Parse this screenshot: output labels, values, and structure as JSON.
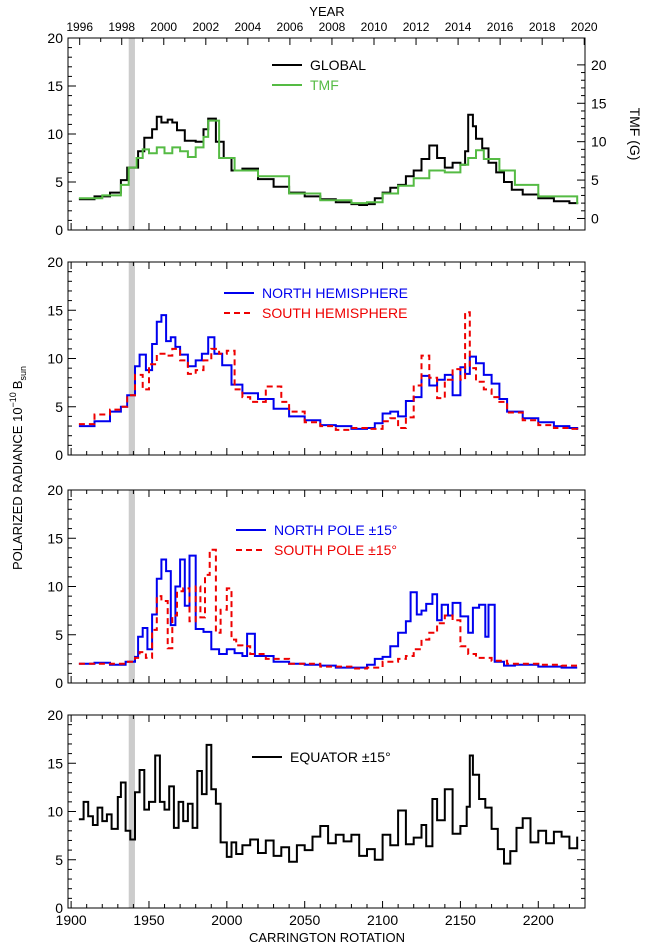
{
  "top_axis": {
    "label": "YEAR",
    "ticks": [
      "1996",
      "1998",
      "2000",
      "2002",
      "2004",
      "2006",
      "2008",
      "2010",
      "2012",
      "2014",
      "2016",
      "2018",
      "2020"
    ],
    "tick_cr": [
      1905.5,
      1932.5,
      1959.5,
      1986.5,
      2013.5,
      2040.5,
      2067.5,
      2094.5,
      2121.5,
      2148.5,
      2175.5,
      2202.5,
      2229.5
    ]
  },
  "shared_y_label_main": "POLARIZED RADIANCE 10",
  "shared_y_label_exp": "−10",
  "shared_y_label_unit": "B",
  "shared_y_label_sub": "sun",
  "x_axis": {
    "label": "CARRINGTON ROTATION",
    "ticks": [
      "1900",
      "1950",
      "2000",
      "2050",
      "2100",
      "2150",
      "2200"
    ],
    "tick_values": [
      1900,
      1950,
      2000,
      2050,
      2100,
      2150,
      2200
    ],
    "range": [
      1898,
      2230
    ]
  },
  "gap_band": [
    1937,
    1941
  ],
  "colors": {
    "black": "#000000",
    "green": "#55bb44",
    "blue": "#0000ee",
    "red": "#ee0000",
    "gray": "#cccccc"
  },
  "chart_data": [
    {
      "type": "line",
      "panel": "global",
      "ylim": [
        0,
        20
      ],
      "yticks": [
        "0",
        "5",
        "10",
        "15",
        "20"
      ],
      "ytick_values": [
        0,
        5,
        10,
        15,
        20
      ],
      "right_axis": {
        "label": "TMF (G)",
        "ticks": [
          "0",
          "5",
          "10",
          "15",
          "20"
        ],
        "tick_values": [
          0,
          5,
          10,
          15,
          20
        ],
        "mapping": "tmf_to_radiance"
      },
      "legend": [
        {
          "label": "GLOBAL",
          "color": "black",
          "dash": false
        },
        {
          "label": "TMF",
          "color": "green",
          "dash": false
        }
      ],
      "series": [
        {
          "name": "GLOBAL",
          "color": "black",
          "dash": false,
          "x": [
            1905,
            1915,
            1925,
            1932,
            1936,
            1943,
            1947,
            1952,
            1955,
            1958,
            1962,
            1965,
            1968,
            1973,
            1980,
            1985,
            1988,
            1993,
            1998,
            2003,
            2010,
            2020,
            2030,
            2040,
            2050,
            2060,
            2070,
            2080,
            2085,
            2090,
            2095,
            2100,
            2105,
            2110,
            2115,
            2120,
            2125,
            2130,
            2135,
            2140,
            2145,
            2150,
            2153,
            2155,
            2158,
            2160,
            2164,
            2168,
            2173,
            2178,
            2183,
            2190,
            2200,
            2210,
            2220,
            2225
          ],
          "values": [
            3.2,
            3.5,
            3.9,
            5.2,
            6.5,
            8.2,
            9.6,
            10.5,
            11.8,
            11.2,
            11.5,
            11.2,
            10.4,
            9.3,
            9.2,
            10.5,
            11.6,
            9.2,
            7.5,
            6.2,
            6.4,
            5.3,
            4.5,
            3.9,
            3.5,
            3.2,
            2.9,
            2.7,
            2.6,
            2.7,
            3.3,
            3.9,
            4.4,
            4.7,
            5.6,
            6.2,
            7.4,
            8.8,
            7.5,
            6.5,
            7.0,
            6.8,
            8.2,
            12.0,
            10.8,
            9.5,
            8.5,
            7.0,
            6.0,
            5.0,
            4.2,
            3.7,
            3.3,
            3.0,
            2.8,
            2.7
          ]
        },
        {
          "name": "TMF",
          "color": "green",
          "dash": false,
          "x": [
            1905,
            1920,
            1932,
            1937,
            1942,
            1946,
            1950,
            1955,
            1960,
            1965,
            1970,
            1975,
            1980,
            1985,
            1988,
            1995,
            2005,
            2020,
            2040,
            2060,
            2080,
            2090,
            2100,
            2110,
            2120,
            2130,
            2140,
            2150,
            2155,
            2160,
            2165,
            2175,
            2185,
            2200,
            2225
          ],
          "values": [
            3.3,
            3.6,
            4.7,
            6.5,
            7.5,
            8.4,
            8.0,
            8.6,
            8.0,
            8.6,
            8.2,
            7.6,
            8.6,
            9.7,
            11.4,
            7.5,
            6.2,
            5.6,
            3.8,
            3.1,
            2.8,
            2.9,
            3.8,
            4.6,
            5.4,
            6.2,
            6.0,
            6.8,
            7.5,
            8.3,
            7.4,
            6.2,
            4.7,
            3.5,
            2.7
          ]
        }
      ]
    },
    {
      "type": "line",
      "panel": "hemispheres",
      "ylim": [
        0,
        20
      ],
      "yticks": [
        "0",
        "5",
        "10",
        "15",
        "20"
      ],
      "ytick_values": [
        0,
        5,
        10,
        15,
        20
      ],
      "legend": [
        {
          "label": "NORTH HEMISPHERE",
          "color": "blue",
          "dash": false
        },
        {
          "label": "SOUTH HEMISPHERE",
          "color": "red",
          "dash": true
        }
      ],
      "series": [
        {
          "name": "NORTH HEMISPHERE",
          "color": "blue",
          "dash": false,
          "x": [
            1905,
            1915,
            1925,
            1932,
            1936,
            1941,
            1944,
            1948,
            1952,
            1955,
            1958,
            1961,
            1964,
            1967,
            1970,
            1975,
            1980,
            1984,
            1988,
            1992,
            1997,
            2003,
            2010,
            2020,
            2030,
            2040,
            2050,
            2060,
            2070,
            2080,
            2090,
            2095,
            2100,
            2105,
            2110,
            2115,
            2120,
            2125,
            2130,
            2135,
            2140,
            2145,
            2150,
            2153,
            2156,
            2160,
            2165,
            2170,
            2175,
            2180,
            2190,
            2200,
            2210,
            2220,
            2225
          ],
          "values": [
            3.0,
            3.5,
            4.5,
            5.0,
            6.2,
            9.2,
            10.4,
            8.8,
            11.5,
            13.8,
            14.5,
            11.8,
            12.2,
            11.2,
            10.4,
            9.2,
            9.8,
            10.5,
            12.2,
            10.5,
            9.3,
            7.3,
            6.4,
            5.8,
            4.8,
            4.0,
            3.6,
            3.1,
            3.0,
            2.7,
            2.8,
            3.3,
            4.3,
            4.5,
            4.0,
            5.6,
            6.0,
            8.2,
            7.2,
            7.8,
            8.3,
            6.2,
            9.1,
            8.4,
            10.2,
            9.5,
            8.3,
            7.4,
            5.8,
            4.5,
            3.8,
            3.4,
            3.0,
            2.8,
            2.6
          ]
        },
        {
          "name": "SOUTH HEMISPHERE",
          "color": "red",
          "dash": true,
          "x": [
            1905,
            1915,
            1925,
            1932,
            1936,
            1941,
            1946,
            1950,
            1955,
            1960,
            1965,
            1970,
            1975,
            1980,
            1985,
            1990,
            1995,
            2000,
            2005,
            2010,
            2015,
            2025,
            2035,
            2040,
            2050,
            2060,
            2070,
            2080,
            2090,
            2100,
            2105,
            2110,
            2115,
            2120,
            2125,
            2130,
            2135,
            2140,
            2145,
            2150,
            2153,
            2156,
            2160,
            2165,
            2170,
            2175,
            2180,
            2190,
            2200,
            2210,
            2220,
            2225
          ],
          "values": [
            3.2,
            4.2,
            4.7,
            5.0,
            6.2,
            8.3,
            6.8,
            9.4,
            10.5,
            10.3,
            11.0,
            9.8,
            8.4,
            8.8,
            9.8,
            11.0,
            10.5,
            10.8,
            6.8,
            6.0,
            5.5,
            7.1,
            5.5,
            4.5,
            3.4,
            3.0,
            2.6,
            2.8,
            2.7,
            3.5,
            3.8,
            2.8,
            3.9,
            7.2,
            10.3,
            8.0,
            5.9,
            7.8,
            8.9,
            7.8,
            14.8,
            9.0,
            7.6,
            6.8,
            6.0,
            5.5,
            4.4,
            3.6,
            3.1,
            2.8,
            2.7,
            2.6
          ]
        }
      ]
    },
    {
      "type": "line",
      "panel": "poles",
      "ylim": [
        0,
        20
      ],
      "yticks": [
        "0",
        "5",
        "10",
        "15",
        "20"
      ],
      "ytick_values": [
        0,
        5,
        10,
        15,
        20
      ],
      "legend": [
        {
          "label": "NORTH POLE ±15°",
          "color": "blue",
          "dash": false
        },
        {
          "label": "SOUTH POLE ±15°",
          "color": "red",
          "dash": true
        }
      ],
      "series": [
        {
          "name": "NORTH POLE ±15°",
          "color": "blue",
          "dash": false,
          "x": [
            1905,
            1915,
            1925,
            1935,
            1941,
            1943,
            1946,
            1949,
            1952,
            1955,
            1958,
            1961,
            1964,
            1967,
            1970,
            1973,
            1976,
            1980,
            1985,
            1990,
            1995,
            2000,
            2005,
            2010,
            2013,
            2018,
            2030,
            2040,
            2050,
            2060,
            2070,
            2080,
            2090,
            2095,
            2100,
            2105,
            2110,
            2115,
            2118,
            2122,
            2125,
            2128,
            2132,
            2135,
            2138,
            2142,
            2145,
            2150,
            2155,
            2158,
            2162,
            2166,
            2168,
            2172,
            2178,
            2185,
            2200,
            2215,
            2225
          ],
          "values": [
            2.0,
            2.1,
            1.9,
            2.2,
            2.7,
            4.8,
            5.7,
            3.5,
            7.1,
            10.8,
            12.8,
            11.6,
            6.0,
            10.0,
            12.8,
            8.0,
            13.2,
            5.6,
            5.3,
            3.5,
            3.0,
            3.5,
            3.1,
            2.8,
            5.1,
            2.8,
            2.2,
            2.0,
            1.9,
            1.8,
            1.6,
            1.6,
            1.9,
            2.5,
            2.7,
            3.8,
            5.2,
            6.4,
            9.4,
            7.1,
            7.5,
            8.2,
            9.2,
            6.5,
            8.1,
            7.0,
            8.3,
            6.9,
            5.2,
            7.8,
            8.1,
            4.8,
            8.1,
            2.2,
            1.8,
            1.9,
            1.7,
            1.6,
            1.6
          ]
        },
        {
          "name": "SOUTH POLE ±15°",
          "color": "red",
          "dash": true,
          "x": [
            1905,
            1915,
            1925,
            1935,
            1941,
            1944,
            1948,
            1952,
            1955,
            1958,
            1962,
            1965,
            1968,
            1972,
            1976,
            1980,
            1983,
            1986,
            1989,
            1993,
            1996,
            2000,
            2003,
            2006,
            2010,
            2015,
            2025,
            2040,
            2060,
            2080,
            2090,
            2100,
            2110,
            2115,
            2120,
            2125,
            2130,
            2135,
            2140,
            2145,
            2150,
            2155,
            2160,
            2170,
            2180,
            2200,
            2215,
            2225
          ],
          "values": [
            2.0,
            2.0,
            2.0,
            2.2,
            2.6,
            3.2,
            2.6,
            5.5,
            9.0,
            8.5,
            3.6,
            7.0,
            9.5,
            9.8,
            6.4,
            10.0,
            6.8,
            11.2,
            13.8,
            5.2,
            7.6,
            9.8,
            4.5,
            3.9,
            3.8,
            3.0,
            2.5,
            2.0,
            1.7,
            1.5,
            1.6,
            2.2,
            2.5,
            2.8,
            3.5,
            4.5,
            5.2,
            6.2,
            7.0,
            6.5,
            3.8,
            3.0,
            2.6,
            2.3,
            2.0,
            1.9,
            1.8,
            1.7
          ]
        }
      ]
    },
    {
      "type": "line",
      "panel": "equator",
      "ylim": [
        0,
        20
      ],
      "yticks": [
        "0",
        "5",
        "10",
        "15",
        "20"
      ],
      "ytick_values": [
        0,
        5,
        10,
        15,
        20
      ],
      "legend": [
        {
          "label": "EQUATOR ±15°",
          "color": "black",
          "dash": false
        }
      ],
      "series": [
        {
          "name": "EQUATOR ±15°",
          "color": "black",
          "dash": false,
          "x": [
            1905,
            1908,
            1911,
            1914,
            1917,
            1920,
            1923,
            1926,
            1930,
            1932,
            1935,
            1938,
            1941,
            1944,
            1947,
            1950,
            1954,
            1957,
            1960,
            1963,
            1966,
            1969,
            1972,
            1975,
            1978,
            1981,
            1984,
            1987,
            1990,
            1993,
            1996,
            2000,
            2003,
            2006,
            2010,
            2015,
            2020,
            2025,
            2030,
            2035,
            2040,
            2045,
            2050,
            2055,
            2060,
            2065,
            2070,
            2075,
            2080,
            2085,
            2090,
            2095,
            2100,
            2105,
            2110,
            2115,
            2120,
            2125,
            2128,
            2132,
            2135,
            2140,
            2145,
            2150,
            2154,
            2156,
            2158,
            2162,
            2166,
            2170,
            2174,
            2178,
            2182,
            2186,
            2190,
            2195,
            2200,
            2205,
            2210,
            2215,
            2220,
            2225
          ],
          "values": [
            9.2,
            11.0,
            9.5,
            8.6,
            10.4,
            9.0,
            9.7,
            8.2,
            11.5,
            13.0,
            8.0,
            7.1,
            12.0,
            14.3,
            10.2,
            11.0,
            15.8,
            11.0,
            10.2,
            12.6,
            8.3,
            11.0,
            9.0,
            10.8,
            8.3,
            14.2,
            11.8,
            16.9,
            12.3,
            10.8,
            6.8,
            5.3,
            6.8,
            5.6,
            6.5,
            7.1,
            5.7,
            7.0,
            5.4,
            6.3,
            4.8,
            6.5,
            6.0,
            7.4,
            8.5,
            6.7,
            7.6,
            6.9,
            7.6,
            5.4,
            6.1,
            5.0,
            7.6,
            6.5,
            10.1,
            6.6,
            7.3,
            8.6,
            6.4,
            11.3,
            9.1,
            12.3,
            7.7,
            8.5,
            10.5,
            15.8,
            13.8,
            11.3,
            10.4,
            8.2,
            6.1,
            4.6,
            5.9,
            8.3,
            9.3,
            6.8,
            8.0,
            6.7,
            7.9,
            7.4,
            6.2,
            7.4
          ]
        }
      ]
    }
  ]
}
